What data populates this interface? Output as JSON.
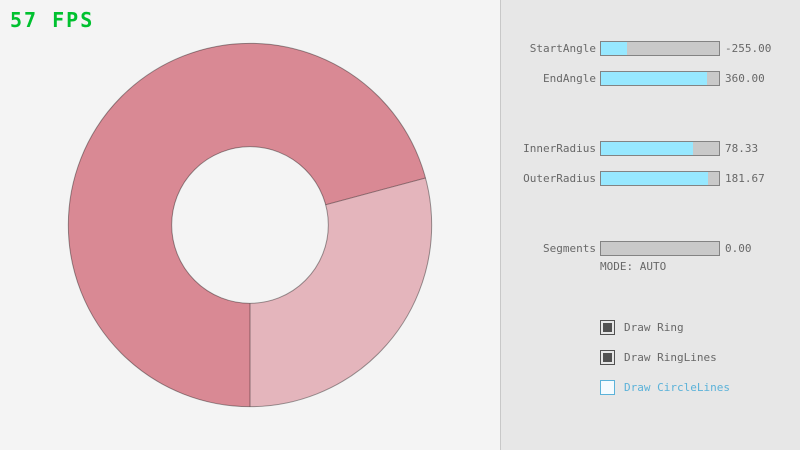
{
  "fps_counter": "57 FPS",
  "colors": {
    "ring_dark": "#d98994",
    "ring_light": "#e4b5bc",
    "ring_line": "rgba(0,0,0,0.38)",
    "accent_cyan": "#97e8ff",
    "fps_green": "#00c12f",
    "focused_blue": "#5bb2d9",
    "text_gray": "#686868"
  },
  "panel": {
    "sliders": [
      {
        "label": "StartAngle",
        "value": "-255.00",
        "fraction": 21.7
      },
      {
        "label": "EndAngle",
        "value": "360.00",
        "fraction": 90.0
      },
      {
        "label": "InnerRadius",
        "value": "78.33",
        "fraction": 78.3
      },
      {
        "label": "OuterRadius",
        "value": "181.67",
        "fraction": 90.8
      },
      {
        "label": "Segments",
        "value": "0.00",
        "fraction": 0
      }
    ],
    "mode_text": "MODE: AUTO",
    "checkboxes": [
      {
        "label": "Draw Ring",
        "checked": true
      },
      {
        "label": "Draw RingLines",
        "checked": true
      },
      {
        "label": "Draw CircleLines",
        "checked": false
      }
    ]
  }
}
